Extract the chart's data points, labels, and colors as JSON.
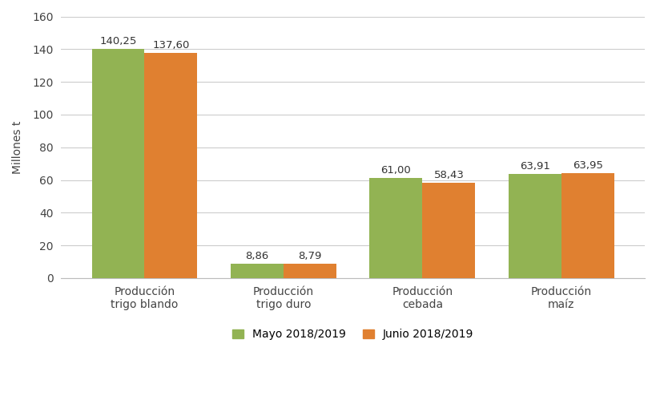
{
  "categories": [
    "Producción\ntrigo blando",
    "Producción\ntrigo duro",
    "Producción\ncebada",
    "Producción\nmaíz"
  ],
  "mayo_values": [
    140.25,
    8.86,
    61.0,
    63.91
  ],
  "junio_values": [
    137.6,
    8.79,
    58.43,
    63.95
  ],
  "mayo_labels": [
    "140,25",
    "8,86",
    "61,00",
    "63,91"
  ],
  "junio_labels": [
    "137,60",
    "8,79",
    "58,43",
    "63,95"
  ],
  "mayo_color": "#92b353",
  "junio_color": "#e08030",
  "ylabel": "Millones t",
  "ylim": [
    0,
    160
  ],
  "yticks": [
    0,
    20,
    40,
    60,
    80,
    100,
    120,
    140,
    160
  ],
  "legend_mayo": "Mayo 2018/2019",
  "legend_junio": "Junio 2018/2019",
  "bar_width": 0.38,
  "x_positions": [
    0,
    1,
    2,
    3
  ],
  "label_fontsize": 9.5,
  "axis_fontsize": 10,
  "legend_fontsize": 10,
  "background_color": "#ffffff",
  "grid_color": "#cccccc"
}
